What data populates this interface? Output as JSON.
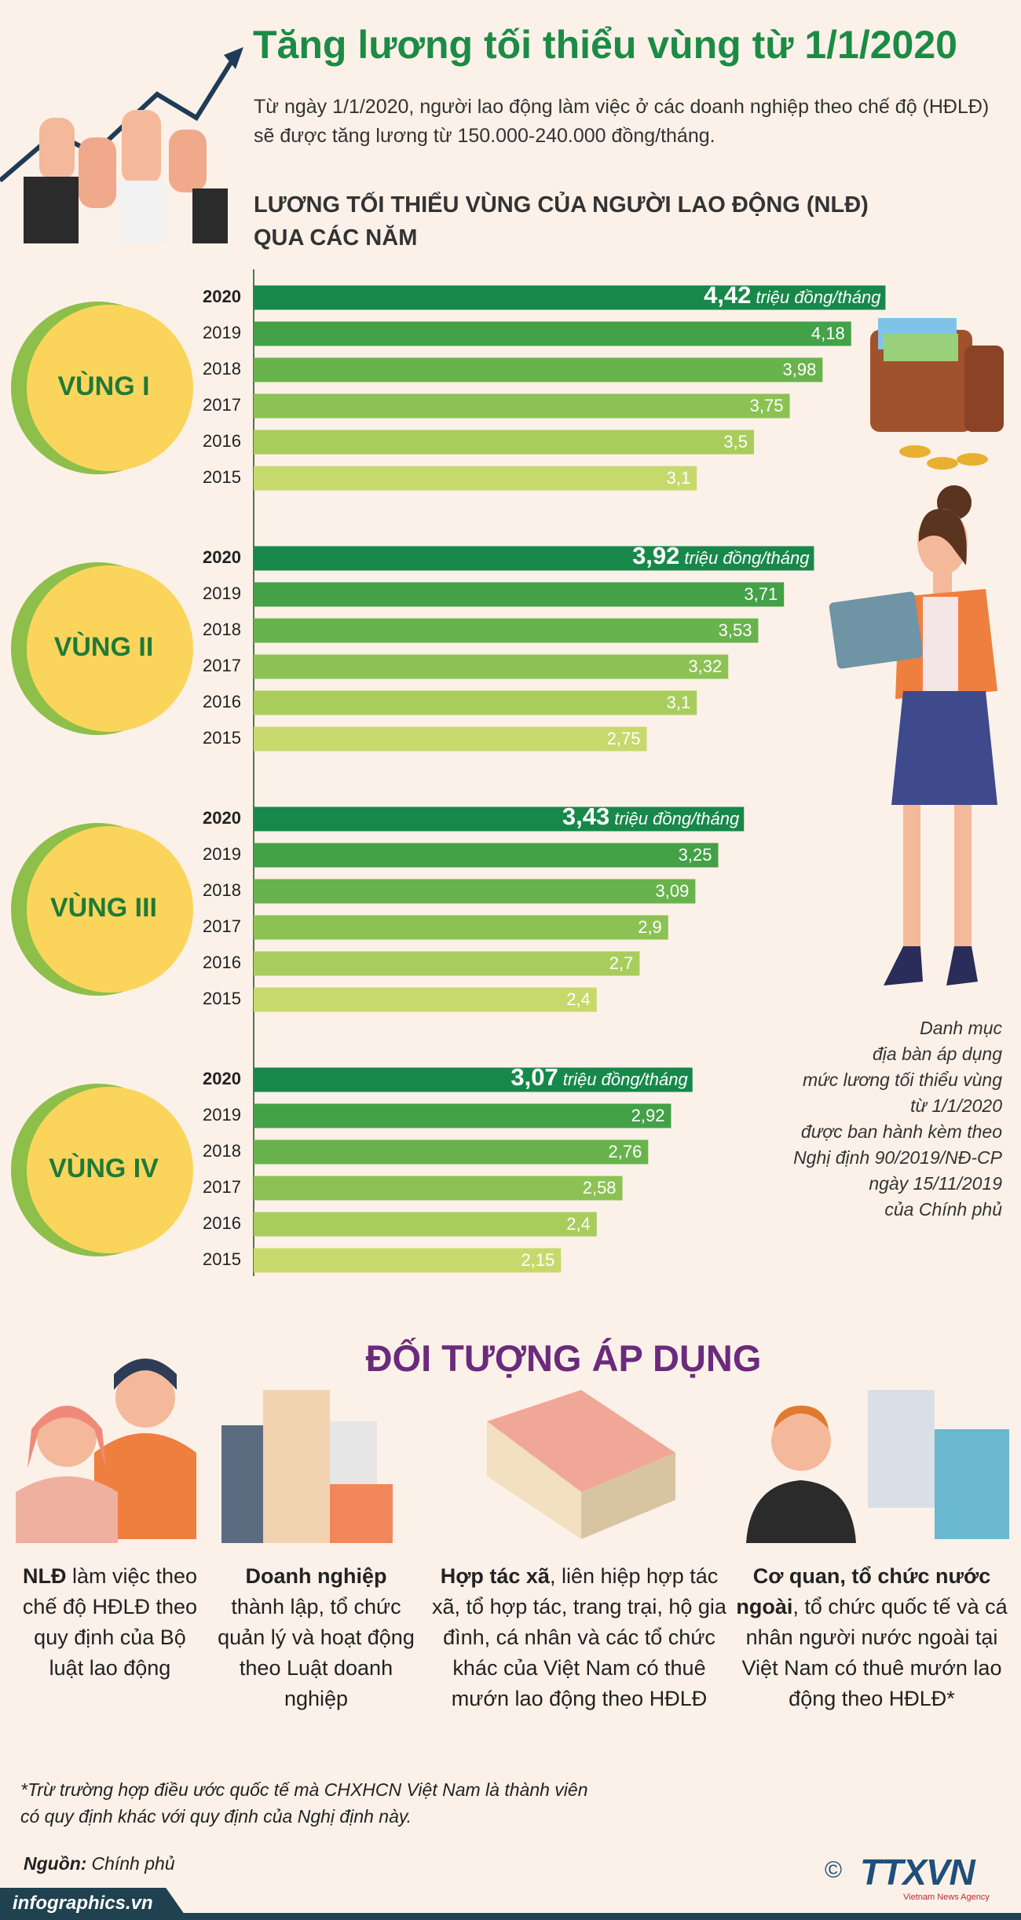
{
  "header": {
    "title": "Tăng lương tối thiểu vùng từ 1/1/2020",
    "intro": "Từ ngày 1/1/2020, người lao động làm việc ở các doanh nghiệp theo chế độ (HĐLĐ)  sẽ được tăng lương từ 150.000-240.000 đồng/tháng."
  },
  "chart_section": {
    "title_lines": [
      "LƯƠNG TỐI THIỂU VÙNG CỦA NGƯỜI LAO ĐỘNG (NLĐ)",
      "QUA CÁC NĂM"
    ]
  },
  "chart_data": [
    {
      "type": "bar",
      "orientation": "horizontal",
      "title": "VÙNG I",
      "categories": [
        "2020",
        "2019",
        "2018",
        "2017",
        "2016",
        "2015"
      ],
      "values": [
        4.42,
        4.18,
        3.98,
        3.75,
        3.5,
        3.1
      ],
      "value_labels": [
        "4,42",
        "4,18",
        "3,98",
        "3,75",
        "3,5",
        "3,1"
      ],
      "value_unit": "triệu đồng/tháng",
      "colors": [
        "#17884a",
        "#43a148",
        "#69b34d",
        "#8cc254",
        "#a9cd5c",
        "#c7d96c"
      ],
      "xlim": [
        0,
        4.5
      ]
    },
    {
      "type": "bar",
      "orientation": "horizontal",
      "title": "VÙNG II",
      "categories": [
        "2020",
        "2019",
        "2018",
        "2017",
        "2016",
        "2015"
      ],
      "values": [
        3.92,
        3.71,
        3.53,
        3.32,
        3.1,
        2.75
      ],
      "value_labels": [
        "3,92",
        "3,71",
        "3,53",
        "3,32",
        "3,1",
        "2,75"
      ],
      "value_unit": "triệu đồng/tháng",
      "colors": [
        "#17884a",
        "#43a148",
        "#69b34d",
        "#8cc254",
        "#a9cd5c",
        "#c7d96c"
      ],
      "xlim": [
        0,
        4.5
      ]
    },
    {
      "type": "bar",
      "orientation": "horizontal",
      "title": "VÙNG III",
      "categories": [
        "2020",
        "2019",
        "2018",
        "2017",
        "2016",
        "2015"
      ],
      "values": [
        3.43,
        3.25,
        3.09,
        2.9,
        2.7,
        2.4
      ],
      "value_labels": [
        "3,43",
        "3,25",
        "3,09",
        "2,9",
        "2,7",
        "2,4"
      ],
      "value_unit": "triệu đồng/tháng",
      "colors": [
        "#17884a",
        "#43a148",
        "#69b34d",
        "#8cc254",
        "#a9cd5c",
        "#c7d96c"
      ],
      "xlim": [
        0,
        4.5
      ]
    },
    {
      "type": "bar",
      "orientation": "horizontal",
      "title": "VÙNG IV",
      "categories": [
        "2020",
        "2019",
        "2018",
        "2017",
        "2016",
        "2015"
      ],
      "values": [
        3.07,
        2.92,
        2.76,
        2.58,
        2.4,
        2.15
      ],
      "value_labels": [
        "3,07",
        "2,92",
        "2,76",
        "2,58",
        "2,4",
        "2,15"
      ],
      "value_unit": "triệu đồng/tháng",
      "colors": [
        "#17884a",
        "#43a148",
        "#69b34d",
        "#8cc254",
        "#a9cd5c",
        "#c7d96c"
      ],
      "xlim": [
        0,
        4.5
      ]
    }
  ],
  "note": {
    "lines": [
      "Danh mục",
      "địa bàn áp dụng",
      "mức lương tối thiểu vùng",
      "từ 1/1/2020",
      "được ban hành kèm theo",
      "Nghị định 90/2019/NĐ-CP",
      "ngày 15/11/2019",
      "của Chính phủ"
    ]
  },
  "applicable": {
    "title": "ĐỐI TƯỢNG ÁP DỤNG",
    "items": [
      {
        "bold": "NLĐ",
        "text": "làm việc theo chế độ HĐLĐ theo quy định của Bộ luật lao động"
      },
      {
        "bold": "Doanh nghiệp",
        "text": "thành lập, tổ chức quản lý và hoạt động theo Luật doanh nghiệp"
      },
      {
        "bold": "Hợp tác xã",
        "text": ", liên hiệp hợp tác xã, tổ hợp tác, trang trại, hộ gia đình, cá nhân và các tổ chức khác của Việt Nam có thuê mướn lao động theo HĐLĐ"
      },
      {
        "bold": "Cơ quan, tổ chức nước ngoài",
        "text": ", tổ chức quốc tế và cá nhân người nước ngoài tại Việt Nam có thuê mướn lao động theo HĐLĐ*"
      }
    ]
  },
  "footnote": {
    "lines": [
      "*Trừ trường hợp điều ước quốc tế mà CHXHCN Việt Nam là thành viên",
      "có quy định khác với quy định của Nghị định này."
    ]
  },
  "source": {
    "label": "Nguồn:",
    "value": "Chính phủ"
  },
  "footer": {
    "site": "infographics.vn",
    "copyright": "©",
    "logo": "TTXVN",
    "agency": "Vietnam News Agency"
  }
}
